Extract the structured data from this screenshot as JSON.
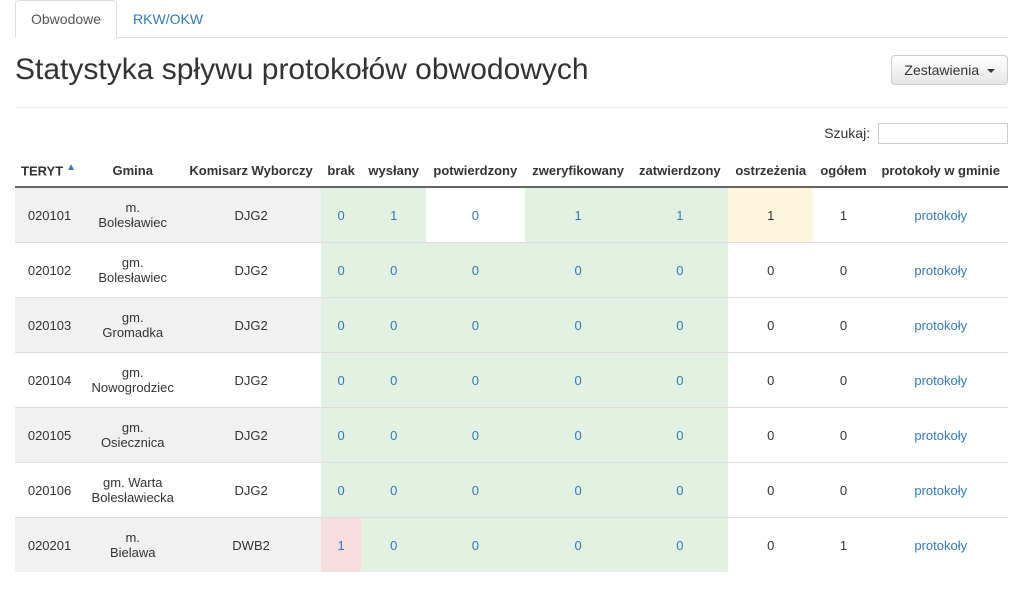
{
  "tabs": [
    {
      "label": "Obwodowe",
      "active": true
    },
    {
      "label": "RKW/OKW",
      "active": false
    }
  ],
  "page_title": "Statystyka spływu protokołów obwodowych",
  "summary_button": "Zestawienia",
  "search_label": "Szukaj:",
  "columns": {
    "teryt": "TERYT",
    "gmina": "Gmina",
    "komisarz": "Komisarz Wyborczy",
    "brak": "brak",
    "wyslany": "wysłany",
    "potwierdzony": "potwierdzony",
    "zweryfikowany": "zweryfikowany",
    "zatwierdzony": "zatwierdzony",
    "ostrzezenia": "ostrzeżenia",
    "ogolem": "ogółem",
    "protokoly": "protokoły w gminie"
  },
  "sort_indicator": "▲",
  "protokoly_link": "protokoły",
  "colors": {
    "link": "#337ab7",
    "ok_bg": "#e2f1e2",
    "warn_bg": "#fdf6dd",
    "err_bg": "#f7ddde"
  },
  "rows": [
    {
      "teryt": "020101",
      "gmina": "m. Bolesławiec",
      "komisarz": "DJG2",
      "brak": {
        "v": "0",
        "link": true,
        "bg": "green"
      },
      "wyslany": {
        "v": "1",
        "link": true,
        "bg": "green"
      },
      "potwierdzony": {
        "v": "0",
        "link": true,
        "bg": ""
      },
      "zweryfikowany": {
        "v": "1",
        "link": true,
        "bg": "green"
      },
      "zatwierdzony": {
        "v": "1",
        "link": true,
        "bg": "green"
      },
      "ostrzezenia": {
        "v": "1",
        "link": false,
        "bg": "yellow"
      },
      "ogolem": {
        "v": "1",
        "link": false,
        "bg": ""
      }
    },
    {
      "teryt": "020102",
      "gmina": "gm. Bolesławiec",
      "komisarz": "DJG2",
      "brak": {
        "v": "0",
        "link": true,
        "bg": "green"
      },
      "wyslany": {
        "v": "0",
        "link": true,
        "bg": "green"
      },
      "potwierdzony": {
        "v": "0",
        "link": true,
        "bg": "green"
      },
      "zweryfikowany": {
        "v": "0",
        "link": true,
        "bg": "green"
      },
      "zatwierdzony": {
        "v": "0",
        "link": true,
        "bg": "green"
      },
      "ostrzezenia": {
        "v": "0",
        "link": false,
        "bg": ""
      },
      "ogolem": {
        "v": "0",
        "link": false,
        "bg": ""
      }
    },
    {
      "teryt": "020103",
      "gmina": "gm. Gromadka",
      "komisarz": "DJG2",
      "brak": {
        "v": "0",
        "link": true,
        "bg": "green"
      },
      "wyslany": {
        "v": "0",
        "link": true,
        "bg": "green"
      },
      "potwierdzony": {
        "v": "0",
        "link": true,
        "bg": "green"
      },
      "zweryfikowany": {
        "v": "0",
        "link": true,
        "bg": "green"
      },
      "zatwierdzony": {
        "v": "0",
        "link": true,
        "bg": "green"
      },
      "ostrzezenia": {
        "v": "0",
        "link": false,
        "bg": ""
      },
      "ogolem": {
        "v": "0",
        "link": false,
        "bg": ""
      }
    },
    {
      "teryt": "020104",
      "gmina": "gm. Nowogrodziec",
      "komisarz": "DJG2",
      "brak": {
        "v": "0",
        "link": true,
        "bg": "green"
      },
      "wyslany": {
        "v": "0",
        "link": true,
        "bg": "green"
      },
      "potwierdzony": {
        "v": "0",
        "link": true,
        "bg": "green"
      },
      "zweryfikowany": {
        "v": "0",
        "link": true,
        "bg": "green"
      },
      "zatwierdzony": {
        "v": "0",
        "link": true,
        "bg": "green"
      },
      "ostrzezenia": {
        "v": "0",
        "link": false,
        "bg": ""
      },
      "ogolem": {
        "v": "0",
        "link": false,
        "bg": ""
      }
    },
    {
      "teryt": "020105",
      "gmina": "gm. Osiecznica",
      "komisarz": "DJG2",
      "brak": {
        "v": "0",
        "link": true,
        "bg": "green"
      },
      "wyslany": {
        "v": "0",
        "link": true,
        "bg": "green"
      },
      "potwierdzony": {
        "v": "0",
        "link": true,
        "bg": "green"
      },
      "zweryfikowany": {
        "v": "0",
        "link": true,
        "bg": "green"
      },
      "zatwierdzony": {
        "v": "0",
        "link": true,
        "bg": "green"
      },
      "ostrzezenia": {
        "v": "0",
        "link": false,
        "bg": ""
      },
      "ogolem": {
        "v": "0",
        "link": false,
        "bg": ""
      }
    },
    {
      "teryt": "020106",
      "gmina": "gm. Warta Bolesławiecka",
      "komisarz": "DJG2",
      "brak": {
        "v": "0",
        "link": true,
        "bg": "green"
      },
      "wyslany": {
        "v": "0",
        "link": true,
        "bg": "green"
      },
      "potwierdzony": {
        "v": "0",
        "link": true,
        "bg": "green"
      },
      "zweryfikowany": {
        "v": "0",
        "link": true,
        "bg": "green"
      },
      "zatwierdzony": {
        "v": "0",
        "link": true,
        "bg": "green"
      },
      "ostrzezenia": {
        "v": "0",
        "link": false,
        "bg": ""
      },
      "ogolem": {
        "v": "0",
        "link": false,
        "bg": ""
      }
    },
    {
      "teryt": "020201",
      "gmina": "m. Bielawa",
      "komisarz": "DWB2",
      "brak": {
        "v": "1",
        "link": true,
        "bg": "red"
      },
      "wyslany": {
        "v": "0",
        "link": true,
        "bg": "green"
      },
      "potwierdzony": {
        "v": "0",
        "link": true,
        "bg": "green"
      },
      "zweryfikowany": {
        "v": "0",
        "link": true,
        "bg": "green"
      },
      "zatwierdzony": {
        "v": "0",
        "link": true,
        "bg": "green"
      },
      "ostrzezenia": {
        "v": "0",
        "link": false,
        "bg": ""
      },
      "ogolem": {
        "v": "1",
        "link": false,
        "bg": ""
      }
    }
  ]
}
